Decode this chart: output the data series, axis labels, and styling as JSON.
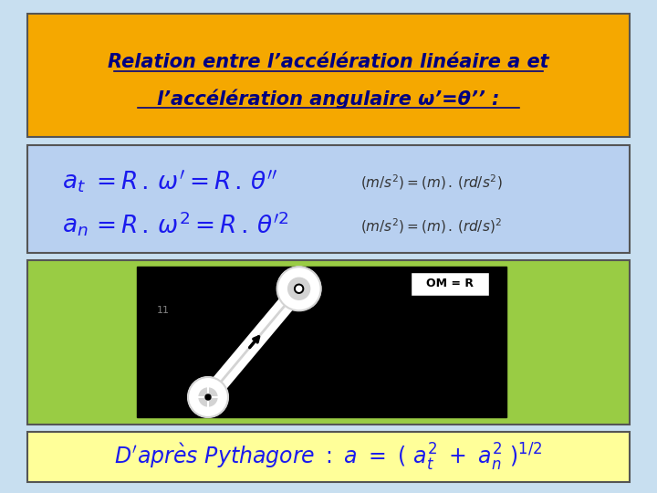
{
  "bg_color": "#c8dff0",
  "title_bg": "#f5a800",
  "title_text_line1": "Relation entre l’accélération linéaire a et",
  "title_text_line2": "l’accélération angulaire ω’=θ’’ :",
  "formula_bg": "#b8d0f0",
  "image_bg": "#99cc44",
  "bottom_bg": "#ffff99",
  "formula_color": "#1a1aee",
  "bottom_color": "#1a1aee",
  "unit_color": "#333333"
}
